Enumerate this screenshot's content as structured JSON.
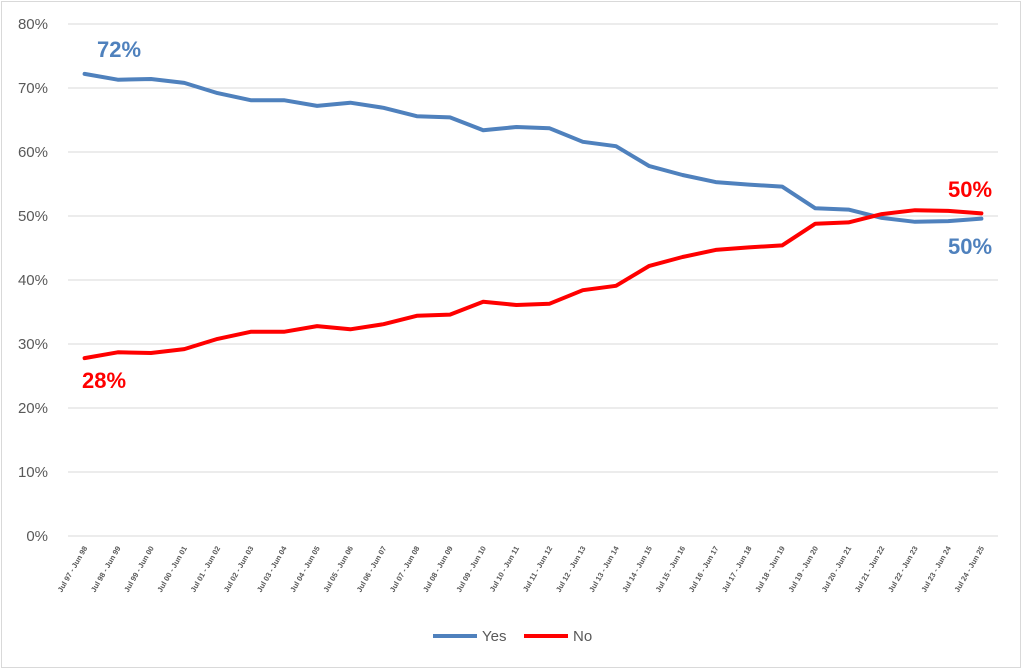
{
  "chart_data": {
    "type": "line",
    "title": "",
    "xlabel": "",
    "ylabel": "",
    "ylim": [
      0,
      80
    ],
    "y_ticks": [
      "0%",
      "10%",
      "20%",
      "30%",
      "40%",
      "50%",
      "60%",
      "70%",
      "80%"
    ],
    "grid": true,
    "legend_position": "bottom",
    "categories": [
      "Jul 97 - Jun 98",
      "Jul 98 - Jun 99",
      "Jul 99 - Jun 00",
      "Jul 00 - Jun 01",
      "Jul 01 - Jun 02",
      "Jul 02 - Jun 03",
      "Jul 03 - Jun 04",
      "Jul 04 - Jun 05",
      "Jul 05 - Jun 06",
      "Jul 06 - Jun 07",
      "Jul 07 - Jun 08",
      "Jul 08 - Jun 09",
      "Jul 09 - Jun 10",
      "Jul 10 - Jun 11",
      "Jul 11 - Jun 12",
      "Jul 12 - Jun 13",
      "Jul 13 - Jun 14",
      "Jul 14 - Jun 15",
      "Jul 15 - Jun 16",
      "Jul 16 - Jun 17",
      "Jul 17 - Jun 18",
      "Jul 18 - Jun 19",
      "Jul 19 - Jun 20",
      "Jul 20 - Jun 21",
      "Jul 21 - Jun 22",
      "Jul 22 - Jun 23",
      "Jul 23 - Jun 24",
      "Jul 24 - Jun 25"
    ],
    "series": [
      {
        "name": "Yes",
        "color": "#4f81bd",
        "values": [
          72.2,
          71.3,
          71.4,
          70.8,
          69.2,
          68.1,
          68.1,
          67.2,
          67.7,
          66.9,
          65.6,
          65.4,
          63.4,
          63.9,
          63.7,
          61.6,
          60.9,
          57.8,
          56.4,
          55.3,
          54.9,
          54.6,
          51.2,
          51.0,
          49.7,
          49.1,
          49.2,
          49.6
        ]
      },
      {
        "name": "No",
        "color": "#ff0000",
        "values": [
          27.8,
          28.7,
          28.6,
          29.2,
          30.8,
          31.9,
          31.9,
          32.8,
          32.3,
          33.1,
          34.4,
          34.6,
          36.6,
          36.1,
          36.3,
          38.4,
          39.1,
          42.2,
          43.6,
          44.7,
          45.1,
          45.4,
          48.8,
          49.0,
          50.3,
          50.9,
          50.8,
          50.4
        ]
      }
    ],
    "annotations": {
      "yes_start": {
        "text": "72%",
        "color": "#4f81bd"
      },
      "no_start": {
        "text": "28%",
        "color": "#ff0000"
      },
      "no_end": {
        "text": "50%",
        "color": "#ff0000"
      },
      "yes_end": {
        "text": "50%",
        "color": "#4f81bd"
      }
    }
  }
}
